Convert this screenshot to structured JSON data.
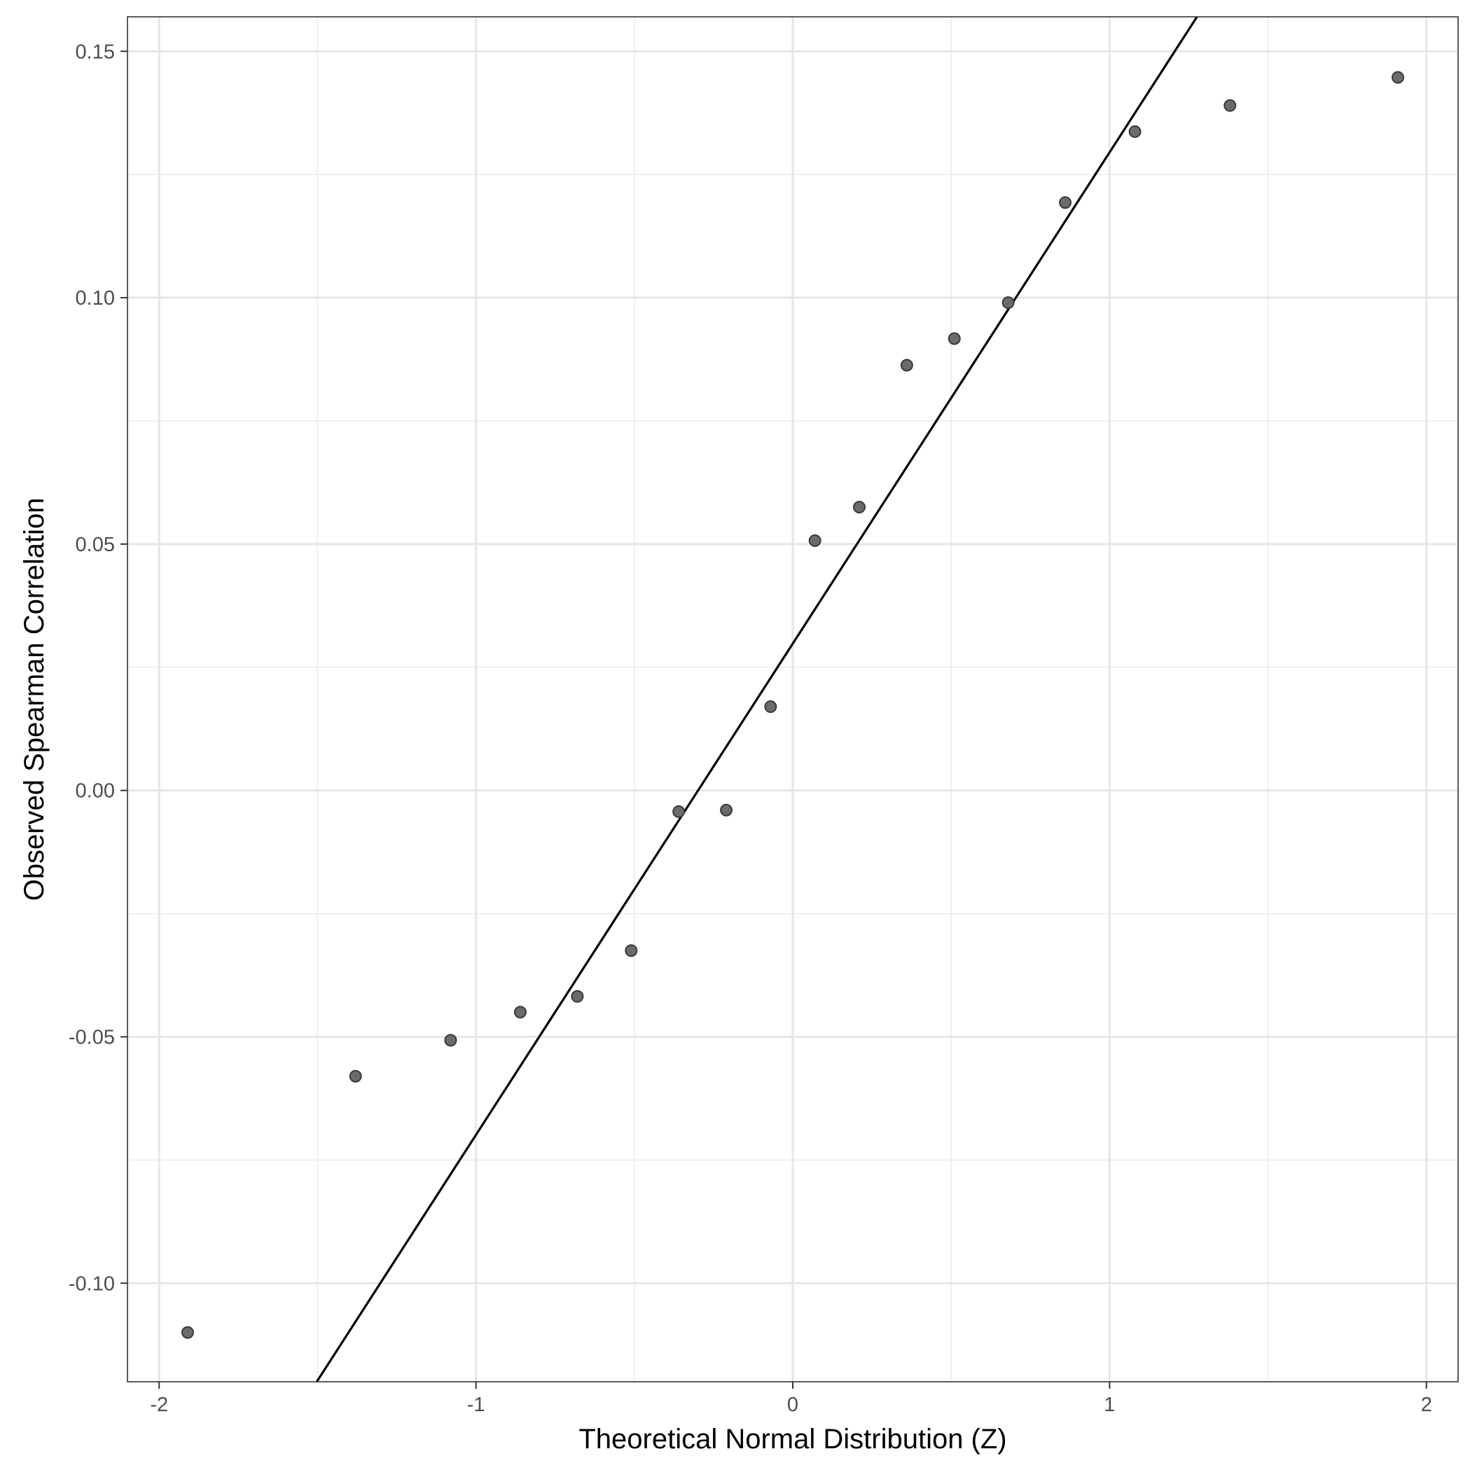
{
  "chart_data": {
    "type": "scatter",
    "xlabel": "Theoretical Normal Distribution (Z)",
    "ylabel": "Observed Spearman Correlation",
    "xlim": [
      -2.1,
      2.1
    ],
    "ylim": [
      -0.12,
      0.157
    ],
    "x_ticks": [
      -2,
      -1,
      0,
      1,
      2
    ],
    "x_tick_labels": [
      "-2",
      "-1",
      "0",
      "1",
      "2"
    ],
    "y_ticks": [
      -0.1,
      -0.05,
      0.0,
      0.05,
      0.1,
      0.15
    ],
    "y_tick_labels": [
      "-0.10",
      "-0.05",
      "0.00",
      "0.05",
      "0.10",
      "0.15"
    ],
    "x_minor_ticks": [
      -1.5,
      -0.5,
      0.5,
      1.5
    ],
    "y_minor_ticks": [
      -0.075,
      -0.025,
      0.025,
      0.075,
      0.125
    ],
    "grid": true,
    "point_color": "#6b6b6b",
    "points": [
      {
        "x": -1.91,
        "y": -0.11
      },
      {
        "x": -1.38,
        "y": -0.058
      },
      {
        "x": -1.08,
        "y": -0.0507
      },
      {
        "x": -0.86,
        "y": -0.045
      },
      {
        "x": -0.68,
        "y": -0.0418
      },
      {
        "x": -0.51,
        "y": -0.0325
      },
      {
        "x": -0.36,
        "y": -0.0043
      },
      {
        "x": -0.21,
        "y": -0.004
      },
      {
        "x": -0.07,
        "y": 0.017
      },
      {
        "x": 0.07,
        "y": 0.0507
      },
      {
        "x": 0.21,
        "y": 0.0575
      },
      {
        "x": 0.36,
        "y": 0.0863
      },
      {
        "x": 0.51,
        "y": 0.0917
      },
      {
        "x": 0.68,
        "y": 0.099
      },
      {
        "x": 0.86,
        "y": 0.1193
      },
      {
        "x": 1.08,
        "y": 0.1337
      },
      {
        "x": 1.38,
        "y": 0.139
      },
      {
        "x": 1.91,
        "y": 0.1447
      }
    ],
    "reference_line": {
      "intercept": 0.0298,
      "slope": 0.0997,
      "color": "#000000"
    }
  }
}
